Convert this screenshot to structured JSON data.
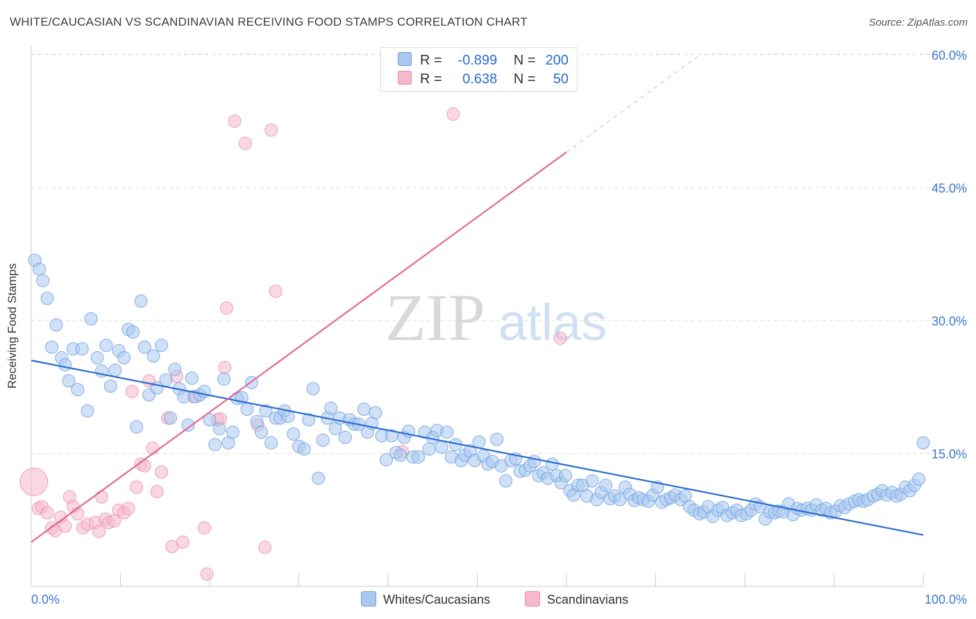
{
  "title": "WHITE/CAUCASIAN VS SCANDINAVIAN RECEIVING FOOD STAMPS CORRELATION CHART",
  "source": "Source: ZipAtlas.com",
  "watermark": {
    "zip": "ZIP",
    "atlas": "atlas"
  },
  "colors": {
    "blue_fill": "#a9c8f0",
    "blue_stroke": "#6fa0e0",
    "blue_line": "#2a6ccf",
    "pink_fill": "#f6b8cb",
    "pink_stroke": "#e889a8",
    "pink_line": "#e06890",
    "axis_text": "#3a78d0",
    "grid": "#dcdcdc"
  },
  "legend": {
    "rows": [
      {
        "r_label": "R =",
        "r_value": "-0.899",
        "n_label": "N =",
        "n_value": "200"
      },
      {
        "r_label": "R =",
        "r_value": "0.638",
        "n_label": "N =",
        "n_value": "50"
      }
    ]
  },
  "bottom_legend": {
    "series1": "Whites/Caucasians",
    "series2": "Scandinavians"
  },
  "chart_data": {
    "type": "scatter",
    "title": "WHITE/CAUCASIAN VS SCANDINAVIAN RECEIVING FOOD STAMPS CORRELATION CHART",
    "xlabel": "",
    "ylabel": "Receiving Food Stamps",
    "xlim": [
      0,
      100
    ],
    "ylim": [
      0,
      60
    ],
    "x_tick_labels": [
      "0.0%",
      "100.0%"
    ],
    "y_ticks": [
      15,
      30,
      45,
      60
    ],
    "y_tick_labels": [
      "15.0%",
      "30.0%",
      "45.0%",
      "60.0%"
    ],
    "grid": true,
    "legend_position": "top-center",
    "series": [
      {
        "name": "Whites/Caucasians",
        "R": -0.899,
        "N": 200,
        "trend": {
          "x": [
            0,
            100
          ],
          "y": [
            25.5,
            5.8
          ]
        },
        "points": [
          [
            0.4,
            36.8
          ],
          [
            0.9,
            35.8
          ],
          [
            1.3,
            34.5
          ],
          [
            1.8,
            32.5
          ],
          [
            2.3,
            27.0
          ],
          [
            2.8,
            29.5
          ],
          [
            3.4,
            25.8
          ],
          [
            3.8,
            25.0
          ],
          [
            4.2,
            23.2
          ],
          [
            4.7,
            26.8
          ],
          [
            5.2,
            22.2
          ],
          [
            5.7,
            26.8
          ],
          [
            6.3,
            19.8
          ],
          [
            6.7,
            30.2
          ],
          [
            7.4,
            25.8
          ],
          [
            7.9,
            24.3
          ],
          [
            8.4,
            27.2
          ],
          [
            8.9,
            22.6
          ],
          [
            9.4,
            24.4
          ],
          [
            9.8,
            26.6
          ],
          [
            10.4,
            25.8
          ],
          [
            10.9,
            29.0
          ],
          [
            11.4,
            28.7
          ],
          [
            11.8,
            18.0
          ],
          [
            12.3,
            32.2
          ],
          [
            12.7,
            27.0
          ],
          [
            13.2,
            21.6
          ],
          [
            13.7,
            26.0
          ],
          [
            14.1,
            22.4
          ],
          [
            14.6,
            27.2
          ],
          [
            15.1,
            23.3
          ],
          [
            15.6,
            19.0
          ],
          [
            16.1,
            24.5
          ],
          [
            16.6,
            22.3
          ],
          [
            17.1,
            21.4
          ],
          [
            17.6,
            18.2
          ],
          [
            18.0,
            23.5
          ],
          [
            18.4,
            21.4
          ],
          [
            18.9,
            21.6
          ],
          [
            19.4,
            22.0
          ],
          [
            20.0,
            18.8
          ],
          [
            20.6,
            16.0
          ],
          [
            21.1,
            17.8
          ],
          [
            21.6,
            23.4
          ],
          [
            22.1,
            16.2
          ],
          [
            22.6,
            17.4
          ],
          [
            23.1,
            21.2
          ],
          [
            23.6,
            21.3
          ],
          [
            24.2,
            20.0
          ],
          [
            24.7,
            23.0
          ],
          [
            25.3,
            18.6
          ],
          [
            25.8,
            17.4
          ],
          [
            26.3,
            19.8
          ],
          [
            26.9,
            16.2
          ],
          [
            27.4,
            19.0
          ],
          [
            27.9,
            19.0
          ],
          [
            28.4,
            19.8
          ],
          [
            28.8,
            19.2
          ],
          [
            29.4,
            17.2
          ],
          [
            30.0,
            15.8
          ],
          [
            30.6,
            15.5
          ],
          [
            31.1,
            18.8
          ],
          [
            31.6,
            22.3
          ],
          [
            32.2,
            12.2
          ],
          [
            32.7,
            16.5
          ],
          [
            33.2,
            19.0
          ],
          [
            33.6,
            20.1
          ],
          [
            34.1,
            17.8
          ],
          [
            34.6,
            19.0
          ],
          [
            35.2,
            16.8
          ],
          [
            35.7,
            18.8
          ],
          [
            36.2,
            18.3
          ],
          [
            36.7,
            18.3
          ],
          [
            37.3,
            20.0
          ],
          [
            37.7,
            17.4
          ],
          [
            38.2,
            18.4
          ],
          [
            38.6,
            19.6
          ],
          [
            39.3,
            17.0
          ],
          [
            39.8,
            14.3
          ],
          [
            40.4,
            17.0
          ],
          [
            40.9,
            15.1
          ],
          [
            41.4,
            14.8
          ],
          [
            41.8,
            16.8
          ],
          [
            42.3,
            17.5
          ],
          [
            42.8,
            14.6
          ],
          [
            43.4,
            14.6
          ],
          [
            44.1,
            17.4
          ],
          [
            44.6,
            15.5
          ],
          [
            45.0,
            16.8
          ],
          [
            45.5,
            17.6
          ],
          [
            46.0,
            15.7
          ],
          [
            46.6,
            17.4
          ],
          [
            47.1,
            14.6
          ],
          [
            47.6,
            16.0
          ],
          [
            48.2,
            14.2
          ],
          [
            48.6,
            14.8
          ],
          [
            49.2,
            15.3
          ],
          [
            49.7,
            14.2
          ],
          [
            50.2,
            16.3
          ],
          [
            50.7,
            14.7
          ],
          [
            51.2,
            13.8
          ],
          [
            51.7,
            14.1
          ],
          [
            52.2,
            16.6
          ],
          [
            52.7,
            13.6
          ],
          [
            53.2,
            11.9
          ],
          [
            53.8,
            14.2
          ],
          [
            54.3,
            14.4
          ],
          [
            54.8,
            13.0
          ],
          [
            55.4,
            13.1
          ],
          [
            55.9,
            13.6
          ],
          [
            56.4,
            14.1
          ],
          [
            56.9,
            12.5
          ],
          [
            57.4,
            12.8
          ],
          [
            57.9,
            12.2
          ],
          [
            58.4,
            13.8
          ],
          [
            58.9,
            12.5
          ],
          [
            59.4,
            11.7
          ],
          [
            59.9,
            12.5
          ],
          [
            60.4,
            10.8
          ],
          [
            60.8,
            10.3
          ],
          [
            61.3,
            11.4
          ],
          [
            61.8,
            11.4
          ],
          [
            62.3,
            10.2
          ],
          [
            62.9,
            11.9
          ],
          [
            63.4,
            9.8
          ],
          [
            63.9,
            10.6
          ],
          [
            64.4,
            11.4
          ],
          [
            64.9,
            9.9
          ],
          [
            65.4,
            10.2
          ],
          [
            66.0,
            9.8
          ],
          [
            66.6,
            11.2
          ],
          [
            67.1,
            10.4
          ],
          [
            67.6,
            9.7
          ],
          [
            68.1,
            10.0
          ],
          [
            68.6,
            9.8
          ],
          [
            69.2,
            9.6
          ],
          [
            69.7,
            10.3
          ],
          [
            70.2,
            11.2
          ],
          [
            70.7,
            9.5
          ],
          [
            71.2,
            9.8
          ],
          [
            71.7,
            10.0
          ],
          [
            72.2,
            10.3
          ],
          [
            72.8,
            9.8
          ],
          [
            73.3,
            10.2
          ],
          [
            73.8,
            9.0
          ],
          [
            74.3,
            8.6
          ],
          [
            74.9,
            8.2
          ],
          [
            75.4,
            8.4
          ],
          [
            75.9,
            9.0
          ],
          [
            76.4,
            7.9
          ],
          [
            77.0,
            8.6
          ],
          [
            77.5,
            8.9
          ],
          [
            78.0,
            8.0
          ],
          [
            78.6,
            8.3
          ],
          [
            79.1,
            8.6
          ],
          [
            79.6,
            8.0
          ],
          [
            80.2,
            8.2
          ],
          [
            80.7,
            8.6
          ],
          [
            81.2,
            9.3
          ],
          [
            81.7,
            9.0
          ],
          [
            82.3,
            7.6
          ],
          [
            82.8,
            8.4
          ],
          [
            83.3,
            8.3
          ],
          [
            83.8,
            8.5
          ],
          [
            84.3,
            8.4
          ],
          [
            84.9,
            9.3
          ],
          [
            85.4,
            8.1
          ],
          [
            85.9,
            8.8
          ],
          [
            86.4,
            8.6
          ],
          [
            87.0,
            8.8
          ],
          [
            87.5,
            8.6
          ],
          [
            88.0,
            9.2
          ],
          [
            88.6,
            8.6
          ],
          [
            89.1,
            8.8
          ],
          [
            89.6,
            8.3
          ],
          [
            90.2,
            8.5
          ],
          [
            90.7,
            9.1
          ],
          [
            91.2,
            8.9
          ],
          [
            91.7,
            9.3
          ],
          [
            92.3,
            9.6
          ],
          [
            92.8,
            9.8
          ],
          [
            93.3,
            9.6
          ],
          [
            93.8,
            9.8
          ],
          [
            94.4,
            10.2
          ],
          [
            94.9,
            10.4
          ],
          [
            95.4,
            10.8
          ],
          [
            95.9,
            10.3
          ],
          [
            96.5,
            10.6
          ],
          [
            97.0,
            10.2
          ],
          [
            97.5,
            10.4
          ],
          [
            98.0,
            11.2
          ],
          [
            98.5,
            10.8
          ],
          [
            99.0,
            11.4
          ],
          [
            99.5,
            12.1
          ],
          [
            100.0,
            16.2
          ]
        ]
      },
      {
        "name": "Scandinavians",
        "R": 0.638,
        "N": 50,
        "trend": {
          "x": [
            0,
            60
          ],
          "y": [
            5.0,
            49.0
          ]
        },
        "trend_extension": {
          "x": [
            60,
            75
          ],
          "y": [
            49.0,
            60.0
          ]
        },
        "points": [
          [
            0.3,
            11.8
          ],
          [
            0.8,
            8.8
          ],
          [
            1.2,
            9.0
          ],
          [
            1.8,
            8.3
          ],
          [
            2.3,
            6.6
          ],
          [
            2.7,
            6.3
          ],
          [
            3.3,
            7.8
          ],
          [
            3.8,
            6.8
          ],
          [
            4.3,
            10.1
          ],
          [
            4.7,
            9.0
          ],
          [
            5.2,
            8.2
          ],
          [
            5.8,
            6.6
          ],
          [
            6.3,
            7.0
          ],
          [
            7.2,
            7.2
          ],
          [
            7.6,
            6.2
          ],
          [
            7.9,
            10.1
          ],
          [
            8.3,
            7.6
          ],
          [
            8.7,
            7.2
          ],
          [
            9.3,
            7.4
          ],
          [
            9.8,
            8.6
          ],
          [
            10.4,
            8.3
          ],
          [
            10.9,
            8.8
          ],
          [
            11.3,
            22.0
          ],
          [
            11.8,
            11.2
          ],
          [
            12.3,
            13.8
          ],
          [
            12.7,
            13.6
          ],
          [
            13.2,
            23.2
          ],
          [
            13.6,
            15.6
          ],
          [
            14.1,
            10.7
          ],
          [
            14.6,
            12.9
          ],
          [
            15.3,
            19.0
          ],
          [
            15.8,
            4.5
          ],
          [
            16.3,
            23.7
          ],
          [
            17.0,
            5.0
          ],
          [
            18.2,
            21.4
          ],
          [
            19.4,
            6.6
          ],
          [
            19.7,
            1.4
          ],
          [
            20.9,
            18.8
          ],
          [
            21.2,
            18.9
          ],
          [
            21.7,
            24.7
          ],
          [
            21.9,
            31.4
          ],
          [
            22.8,
            52.5
          ],
          [
            24.0,
            50.0
          ],
          [
            25.4,
            18.2
          ],
          [
            26.2,
            4.4
          ],
          [
            26.9,
            51.5
          ],
          [
            27.4,
            33.3
          ],
          [
            41.6,
            15.2
          ],
          [
            47.3,
            53.3
          ],
          [
            59.3,
            28.0
          ]
        ]
      }
    ]
  }
}
